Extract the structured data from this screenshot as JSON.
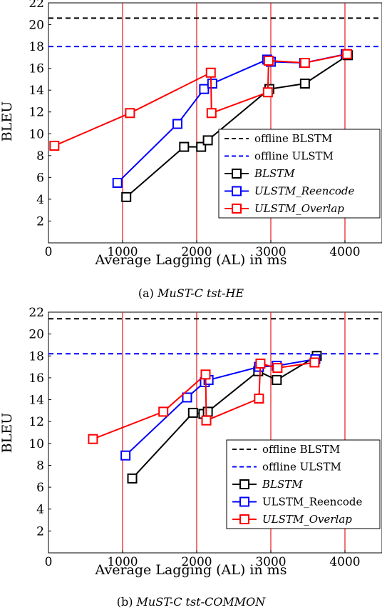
{
  "chart_data": [
    {
      "type": "line",
      "caption_prefix": "(a)",
      "caption": "MuST-C tst-HE",
      "xlabel": "Average Lagging (AL) in ms",
      "ylabel": "BLEU",
      "xlim": [
        0,
        4500
      ],
      "ylim": [
        0,
        22
      ],
      "xticks": [
        0,
        1000,
        2000,
        3000,
        4000
      ],
      "yticks": [
        2,
        4,
        6,
        8,
        10,
        12,
        14,
        16,
        18,
        20,
        22
      ],
      "vlines": [
        1000,
        2000,
        3000,
        4000
      ],
      "hlines": [
        {
          "name": "offline BLSTM",
          "y": 20.6,
          "color": "#000000"
        },
        {
          "name": "offline ULSTM",
          "y": 18.0,
          "color": "#0000ff"
        }
      ],
      "legend_position": "bottom-right",
      "series": [
        {
          "name": "BLSTM",
          "italic": true,
          "color": "#000000",
          "x": [
            1050,
            1830,
            2060,
            2150,
            2980,
            3460,
            4040
          ],
          "y": [
            4.2,
            8.8,
            8.8,
            9.4,
            14.1,
            14.6,
            17.2
          ]
        },
        {
          "name": "ULSTM_Reencode",
          "italic": true,
          "color": "#0000ff",
          "x": [
            930,
            1740,
            2100,
            2210,
            2950,
            3000,
            3450,
            4010
          ],
          "y": [
            5.5,
            10.9,
            14.1,
            14.6,
            16.8,
            16.6,
            16.5,
            17.3
          ]
        },
        {
          "name": "ULSTM_Overlap",
          "italic": true,
          "color": "#ff0000",
          "x": [
            80,
            1100,
            2190,
            2200,
            2960,
            2970,
            3460,
            4030
          ],
          "y": [
            8.9,
            11.9,
            15.6,
            11.9,
            13.8,
            16.7,
            16.5,
            17.3
          ]
        }
      ]
    },
    {
      "type": "line",
      "caption_prefix": "(b)",
      "caption": "MuST-C tst-COMMON",
      "xlabel": "Average Lagging (AL) in ms",
      "ylabel": "BLEU",
      "xlim": [
        0,
        4500
      ],
      "ylim": [
        0,
        22
      ],
      "xticks": [
        0,
        1000,
        2000,
        3000,
        4000
      ],
      "yticks": [
        2,
        4,
        6,
        8,
        10,
        12,
        14,
        16,
        18,
        20,
        22
      ],
      "vlines": [
        1000,
        2000,
        3000,
        4000
      ],
      "hlines": [
        {
          "name": "offline BLSTM",
          "y": 21.4,
          "color": "#000000"
        },
        {
          "name": "offline ULSTM",
          "y": 18.2,
          "color": "#0000ff"
        }
      ],
      "legend_position": "bottom-right",
      "series": [
        {
          "name": "BLSTM",
          "italic": true,
          "color": "#000000",
          "x": [
            1130,
            1950,
            2090,
            2150,
            2830,
            3080,
            3620
          ],
          "y": [
            6.8,
            12.8,
            12.7,
            12.9,
            16.6,
            15.8,
            18.0
          ]
        },
        {
          "name": "ULSTM_Reencode",
          "italic": false,
          "color": "#0000ff",
          "x": [
            1040,
            1870,
            2110,
            2160,
            2840,
            3080,
            3600
          ],
          "y": [
            8.9,
            14.2,
            15.6,
            15.8,
            17.0,
            17.1,
            17.7
          ]
        },
        {
          "name": "ULSTM_Overlap",
          "italic": true,
          "color": "#ff0000",
          "x": [
            600,
            1550,
            2120,
            2130,
            2840,
            2860,
            3090,
            3590
          ],
          "y": [
            10.4,
            12.9,
            16.3,
            12.1,
            14.1,
            17.3,
            16.9,
            17.4
          ]
        }
      ]
    }
  ]
}
